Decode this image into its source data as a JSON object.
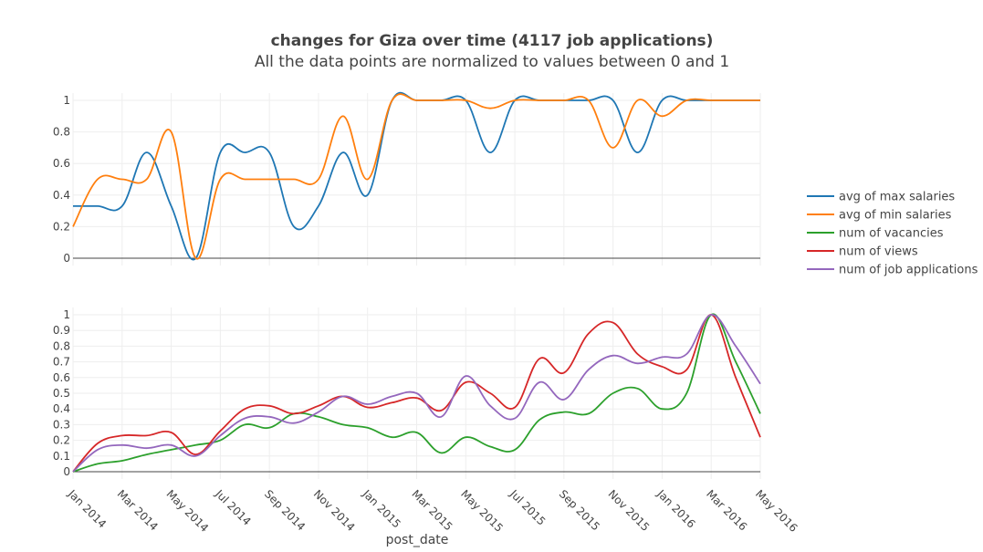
{
  "title": "changes for Giza over time (4117 job applications)",
  "subtitle": "All the data points are normalized to values between 0 and 1",
  "xlabel": "post_date",
  "x_tick_labels": [
    "Jan 2014",
    "Mar 2014",
    "May 2014",
    "Jul 2014",
    "Sep 2014",
    "Nov 2014",
    "Jan 2015",
    "Mar 2015",
    "May 2015",
    "Jul 2015",
    "Sep 2015",
    "Nov 2015",
    "Jan 2016",
    "Mar 2016",
    "May 2016"
  ],
  "legend": [
    {
      "name": "avg of max salaries",
      "color": "#1f77b4"
    },
    {
      "name": "avg of min salaries",
      "color": "#ff7f0e"
    },
    {
      "name": "num of vacancies",
      "color": "#2ca02c"
    },
    {
      "name": "num of views",
      "color": "#d62728"
    },
    {
      "name": "num of job applications",
      "color": "#9467bd"
    }
  ],
  "chart_data": [
    {
      "type": "line",
      "panel": "top",
      "ylim": [
        0,
        1
      ],
      "y_ticks": [
        "0",
        "0.2",
        "0.4",
        "0.6",
        "0.8",
        "1"
      ],
      "x": [
        "Jan 2014",
        "Feb 2014",
        "Mar 2014",
        "Apr 2014",
        "May 2014",
        "Jun 2014",
        "Jul 2014",
        "Aug 2014",
        "Sep 2014",
        "Oct 2014",
        "Nov 2014",
        "Dec 2014",
        "Jan 2015",
        "Feb 2015",
        "Mar 2015",
        "Apr 2015",
        "May 2015",
        "Jun 2015",
        "Jul 2015",
        "Aug 2015",
        "Sep 2015",
        "Oct 2015",
        "Nov 2015",
        "Dec 2015",
        "Jan 2016",
        "Feb 2016",
        "Mar 2016",
        "Apr 2016",
        "May 2016"
      ],
      "series": [
        {
          "name": "avg of max salaries",
          "color": "#1f77b4",
          "values": [
            0.33,
            0.33,
            0.33,
            0.67,
            0.33,
            0,
            0.67,
            0.67,
            0.67,
            0.2,
            0.33,
            0.67,
            0.4,
            1,
            1,
            1,
            1,
            0.67,
            1,
            1,
            1,
            1,
            1,
            0.67,
            1,
            1,
            1,
            1,
            1
          ]
        },
        {
          "name": "avg of min salaries",
          "color": "#ff7f0e",
          "values": [
            0.2,
            0.5,
            0.5,
            0.5,
            0.8,
            0,
            0.5,
            0.5,
            0.5,
            0.5,
            0.5,
            0.9,
            0.5,
            1,
            1,
            1,
            1,
            0.95,
            1,
            1,
            1,
            1,
            0.7,
            1,
            0.9,
            1,
            1,
            1,
            1
          ]
        }
      ]
    },
    {
      "type": "line",
      "panel": "bottom",
      "ylim": [
        0,
        1
      ],
      "y_ticks": [
        "0",
        "0.1",
        "0.2",
        "0.3",
        "0.4",
        "0.5",
        "0.6",
        "0.7",
        "0.8",
        "0.9",
        "1"
      ],
      "x": [
        "Jan 2014",
        "Feb 2014",
        "Mar 2014",
        "Apr 2014",
        "May 2014",
        "Jun 2014",
        "Jul 2014",
        "Aug 2014",
        "Sep 2014",
        "Oct 2014",
        "Nov 2014",
        "Dec 2014",
        "Jan 2015",
        "Feb 2015",
        "Mar 2015",
        "Apr 2015",
        "May 2015",
        "Jun 2015",
        "Jul 2015",
        "Aug 2015",
        "Sep 2015",
        "Oct 2015",
        "Nov 2015",
        "Dec 2015",
        "Jan 2016",
        "Feb 2016",
        "Mar 2016",
        "Apr 2016",
        "May 2016"
      ],
      "series": [
        {
          "name": "num of vacancies",
          "color": "#2ca02c",
          "values": [
            0,
            0.05,
            0.07,
            0.11,
            0.14,
            0.17,
            0.2,
            0.3,
            0.28,
            0.37,
            0.35,
            0.3,
            0.28,
            0.22,
            0.25,
            0.12,
            0.22,
            0.16,
            0.14,
            0.33,
            0.38,
            0.37,
            0.5,
            0.53,
            0.4,
            0.5,
            1,
            0.7,
            0.37
          ]
        },
        {
          "name": "num of views",
          "color": "#d62728",
          "values": [
            0,
            0.18,
            0.23,
            0.23,
            0.25,
            0.11,
            0.26,
            0.4,
            0.42,
            0.37,
            0.42,
            0.48,
            0.41,
            0.44,
            0.47,
            0.39,
            0.57,
            0.5,
            0.41,
            0.72,
            0.63,
            0.88,
            0.95,
            0.75,
            0.67,
            0.65,
            1,
            0.6,
            0.22
          ]
        },
        {
          "name": "num of job applications",
          "color": "#9467bd",
          "values": [
            0,
            0.14,
            0.17,
            0.15,
            0.17,
            0.1,
            0.23,
            0.34,
            0.35,
            0.31,
            0.38,
            0.48,
            0.43,
            0.48,
            0.5,
            0.35,
            0.61,
            0.42,
            0.34,
            0.57,
            0.46,
            0.65,
            0.74,
            0.69,
            0.73,
            0.75,
            1,
            0.8,
            0.56
          ]
        }
      ]
    }
  ]
}
